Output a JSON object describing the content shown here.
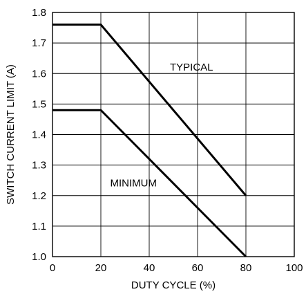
{
  "chart_data": {
    "type": "line",
    "title": "",
    "xlabel": "DUTY CYCLE (%)",
    "ylabel": "SWITCH CURRENT LIMIT (A)",
    "xlim": [
      0,
      100
    ],
    "ylim": [
      1.0,
      1.8
    ],
    "x_ticks": [
      0,
      20,
      40,
      60,
      80,
      100
    ],
    "x_tick_labels": [
      "0",
      "20",
      "40",
      "60",
      "80",
      "100"
    ],
    "y_ticks": [
      1.0,
      1.1,
      1.2,
      1.3,
      1.4,
      1.5,
      1.6,
      1.7,
      1.8
    ],
    "y_tick_labels": [
      "1.0",
      "1.1",
      "1.2",
      "1.3",
      "1.4",
      "1.5",
      "1.6",
      "1.7",
      "1.8"
    ],
    "grid": true,
    "legend": "none",
    "series": [
      {
        "name": "TYPICAL",
        "color": "#000000",
        "x": [
          0,
          20,
          80
        ],
        "y": [
          1.76,
          1.76,
          1.2
        ]
      },
      {
        "name": "MINIMUM",
        "color": "#000000",
        "x": [
          0,
          20,
          80
        ],
        "y": [
          1.48,
          1.48,
          1.0
        ]
      }
    ],
    "annotations": [
      {
        "text": "TYPICAL",
        "x": 57.5,
        "y": 1.61
      },
      {
        "text": "MINIMUM",
        "x": 33.5,
        "y": 1.23
      }
    ]
  }
}
